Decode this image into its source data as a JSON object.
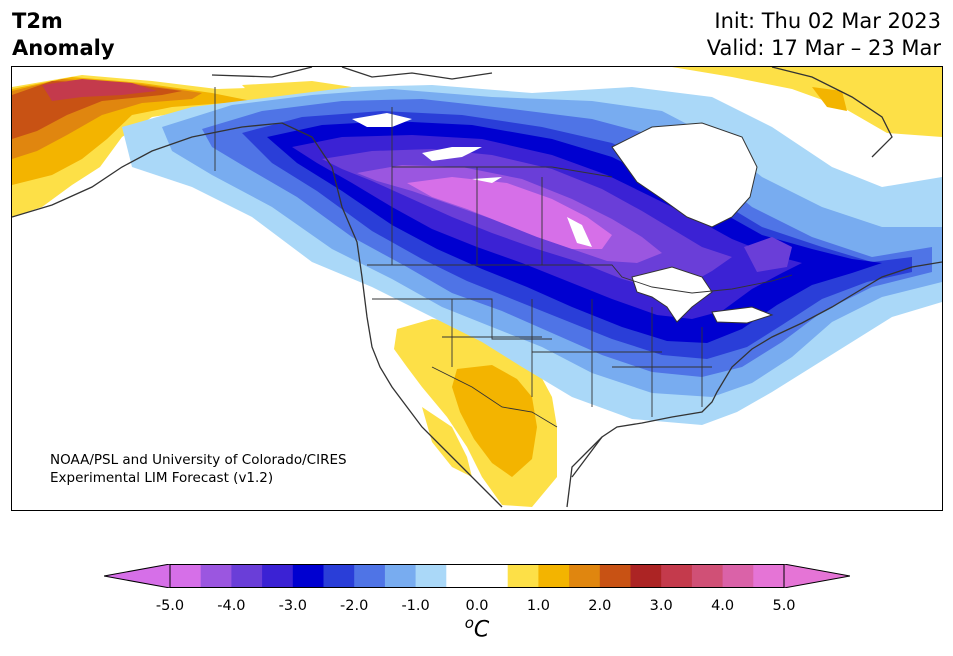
{
  "header": {
    "title_line1": "T2m",
    "title_line2": "Anomaly",
    "init_label": "Init: Thu 02 Mar 2023",
    "valid_label": "Valid: 17 Mar – 23 Mar"
  },
  "map": {
    "credit_line1": "NOAA/PSL and University of Colorado/CIRES",
    "credit_line2": "Experimental LIM Forecast (v1.2)"
  },
  "colorbar": {
    "unit_symbol": "C",
    "unit_superscript": "o",
    "tick_labels": [
      "-5.0",
      "-4.0",
      "-3.0",
      "-2.0",
      "-1.0",
      "0.0",
      "1.0",
      "2.0",
      "3.0",
      "4.0",
      "5.0"
    ],
    "colors": [
      "#d66fe8",
      "#9b56e0",
      "#6a3ed8",
      "#3b22d4",
      "#0000d0",
      "#2a3ed8",
      "#4f74e6",
      "#78acf0",
      "#aad8f8",
      "#ffffff",
      "#ffffff",
      "#fde047",
      "#f3b400",
      "#e0860f",
      "#c85214",
      "#ac2424",
      "#c43a4c",
      "#d05076",
      "#da62a8",
      "#e574d6"
    ],
    "under_color": "#d66fe8",
    "over_color": "#e574d6"
  }
}
